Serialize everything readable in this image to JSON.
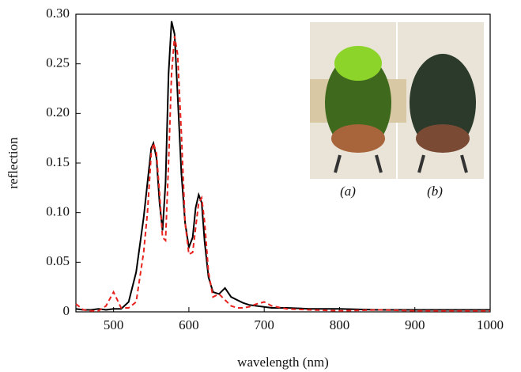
{
  "chart_data": {
    "type": "line",
    "xlabel": "wavelength (nm)",
    "ylabel": "reflection",
    "x": [
      450,
      460,
      470,
      480,
      490,
      500,
      510,
      520,
      530,
      540,
      545,
      550,
      553,
      557,
      561,
      565,
      569,
      573,
      577,
      581,
      585,
      590,
      595,
      600,
      605,
      609,
      613,
      617,
      621,
      626,
      632,
      640,
      648,
      656,
      664,
      672,
      680,
      690,
      700,
      710,
      730,
      760,
      800,
      850,
      900,
      950,
      1000
    ],
    "series": [
      {
        "color": "#000000",
        "linestyle": "solid",
        "values": [
          0.003,
          0.002,
          0.002,
          0.003,
          0.002,
          0.003,
          0.003,
          0.01,
          0.04,
          0.095,
          0.13,
          0.165,
          0.17,
          0.155,
          0.11,
          0.082,
          0.13,
          0.24,
          0.293,
          0.28,
          0.22,
          0.14,
          0.09,
          0.065,
          0.075,
          0.105,
          0.118,
          0.11,
          0.07,
          0.035,
          0.02,
          0.018,
          0.024,
          0.015,
          0.012,
          0.009,
          0.007,
          0.006,
          0.005,
          0.004,
          0.004,
          0.003,
          0.003,
          0.002,
          0.002,
          0.002,
          0.002
        ]
      },
      {
        "color": "#e8231f",
        "linestyle": "dashed",
        "values": [
          0.008,
          0.002,
          0.001,
          0.001,
          0.006,
          0.02,
          0.004,
          0.004,
          0.01,
          0.06,
          0.1,
          0.16,
          0.17,
          0.16,
          0.12,
          0.075,
          0.072,
          0.15,
          0.24,
          0.278,
          0.26,
          0.18,
          0.09,
          0.058,
          0.06,
          0.085,
          0.11,
          0.115,
          0.09,
          0.04,
          0.015,
          0.018,
          0.012,
          0.006,
          0.004,
          0.004,
          0.005,
          0.008,
          0.01,
          0.006,
          0.003,
          0.002,
          0.001,
          0.002,
          0.001,
          0.001,
          0.001
        ]
      }
    ],
    "xlim": [
      450,
      1000
    ],
    "xticks": [
      500,
      600,
      700,
      800,
      900,
      1000
    ],
    "ylim": [
      0,
      0.3
    ],
    "yticks": [
      0,
      0.05,
      {
        "value": 0.1,
        "label": "0.10"
      },
      0.15,
      {
        "value": 0.2,
        "label": "0.20"
      },
      0.25,
      {
        "value": 0.3,
        "label": "0.30"
      }
    ],
    "inset_labels": [
      "(a)",
      "(b)"
    ]
  }
}
